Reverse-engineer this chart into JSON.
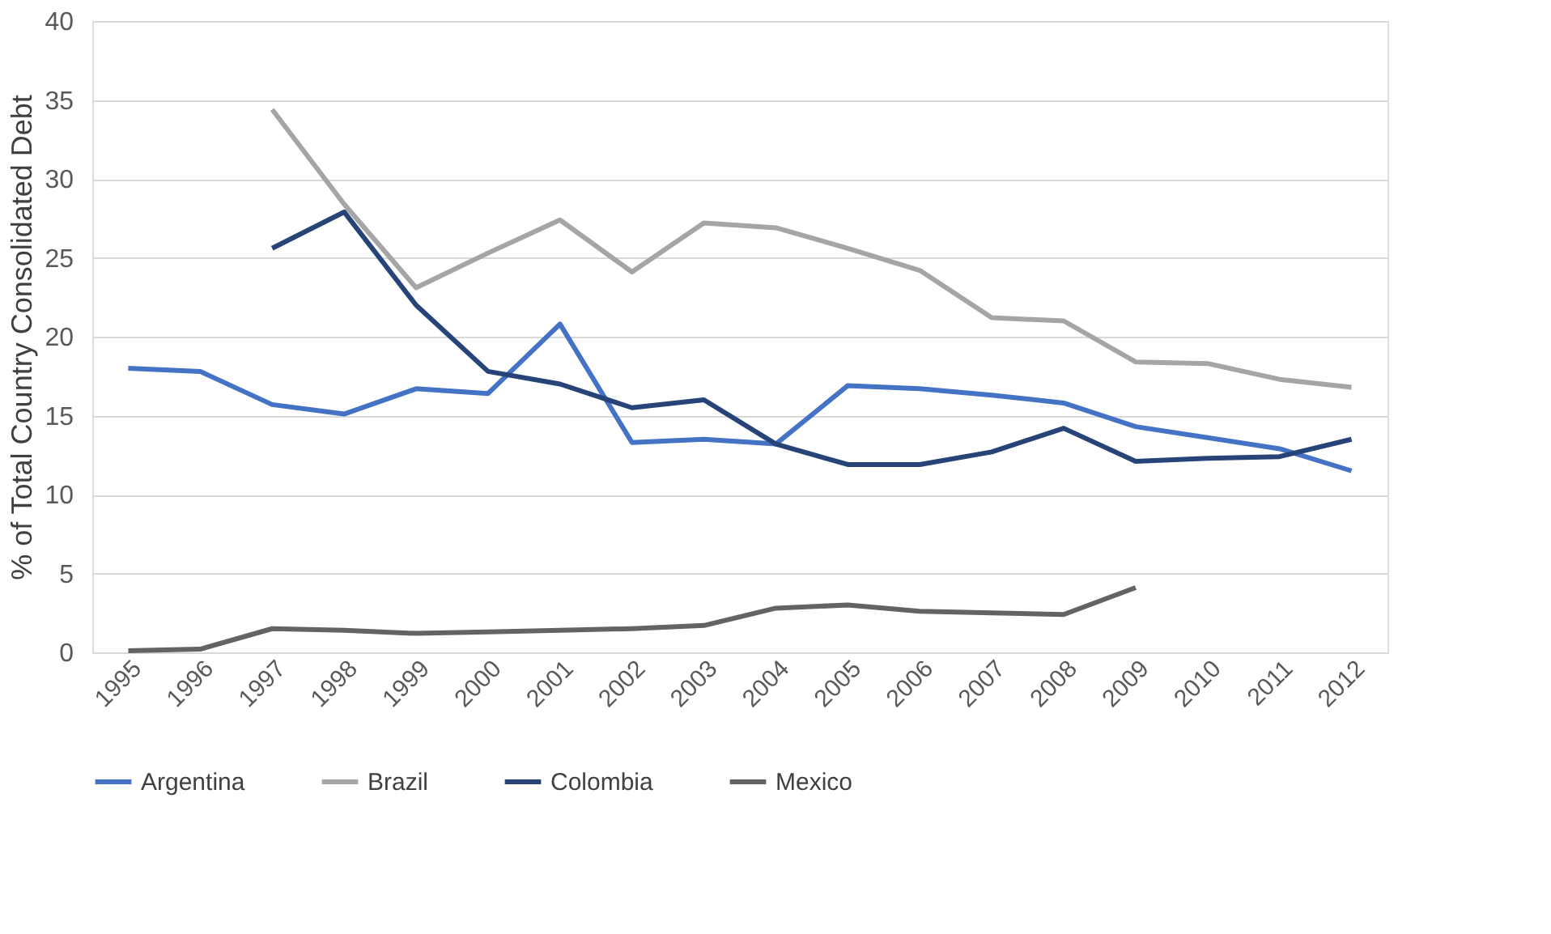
{
  "chart_data": {
    "type": "line",
    "ylabel": "% of Total Country Consolidated Debt",
    "categories": [
      "1995",
      "1996",
      "1997",
      "1998",
      "1999",
      "2000",
      "2001",
      "2002",
      "2003",
      "2004",
      "2005",
      "2006",
      "2007",
      "2008",
      "2009",
      "2010",
      "2011",
      "2012"
    ],
    "series": [
      {
        "name": "Argentina",
        "color": "#4472c4",
        "values": [
          18.0,
          17.8,
          15.7,
          15.1,
          16.7,
          16.4,
          20.8,
          13.3,
          13.5,
          13.2,
          16.9,
          16.7,
          16.3,
          15.8,
          14.3,
          13.6,
          12.9,
          11.5
        ]
      },
      {
        "name": "Brazil",
        "color": "#a5a5a5",
        "values": [
          null,
          null,
          34.4,
          28.4,
          23.1,
          25.3,
          27.4,
          24.1,
          27.2,
          26.9,
          25.6,
          24.2,
          21.2,
          21.0,
          18.4,
          18.3,
          17.3,
          16.8
        ]
      },
      {
        "name": "Colombia",
        "color": "#264478",
        "values": [
          null,
          null,
          25.6,
          27.9,
          22.0,
          17.8,
          17.0,
          15.5,
          16.0,
          13.2,
          11.9,
          11.9,
          12.7,
          14.2,
          12.1,
          12.3,
          12.4,
          13.5
        ]
      },
      {
        "name": "Mexico",
        "color": "#636363",
        "values": [
          0.1,
          0.2,
          1.5,
          1.4,
          1.2,
          1.3,
          1.4,
          1.5,
          1.7,
          2.8,
          3.0,
          2.6,
          2.5,
          2.4,
          4.1,
          null,
          null,
          null
        ]
      }
    ],
    "ylim": [
      0,
      40
    ],
    "yticks": [
      0,
      5,
      10,
      15,
      20,
      25,
      30,
      35,
      40
    ],
    "grid": "y",
    "legend": "bottom",
    "marker": "none",
    "line_style": "solid"
  }
}
